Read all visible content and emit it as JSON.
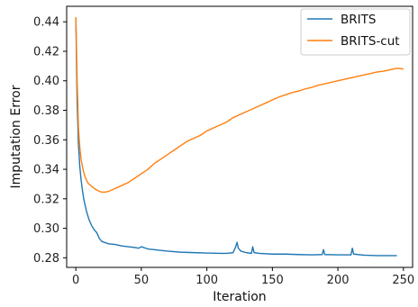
{
  "chart_data": {
    "type": "line",
    "title": "",
    "xlabel": "Iteration",
    "ylabel": "Imputation Error",
    "xlim": [
      -7,
      257
    ],
    "ylim": [
      0.2735,
      0.4505
    ],
    "xticks": [
      0,
      50,
      100,
      150,
      200,
      250
    ],
    "yticks": [
      0.28,
      0.3,
      0.32,
      0.34,
      0.36,
      0.38,
      0.4,
      0.42,
      0.44
    ],
    "ytick_labels": [
      "0.28",
      "0.30",
      "0.32",
      "0.34",
      "0.36",
      "0.38",
      "0.40",
      "0.42",
      "0.44"
    ],
    "grid": false,
    "legend_position": "top-right",
    "series": [
      {
        "name": "BRITS",
        "color": "#1f77b4",
        "x": [
          0,
          1,
          2,
          3,
          4,
          5,
          6,
          7,
          8,
          10,
          12,
          14,
          16,
          18,
          20,
          25,
          30,
          35,
          40,
          45,
          48,
          50,
          55,
          60,
          65,
          70,
          80,
          90,
          100,
          110,
          115,
          120,
          122,
          123,
          124,
          126,
          130,
          134,
          135,
          136,
          140,
          150,
          160,
          170,
          180,
          188,
          189,
          190,
          200,
          210,
          211,
          212,
          220,
          230,
          240,
          245
        ],
        "y": [
          0.443,
          0.385,
          0.357,
          0.342,
          0.333,
          0.326,
          0.32,
          0.316,
          0.312,
          0.306,
          0.302,
          0.299,
          0.297,
          0.293,
          0.291,
          0.2895,
          0.289,
          0.288,
          0.2875,
          0.287,
          0.2865,
          0.2875,
          0.286,
          0.2855,
          0.285,
          0.2845,
          0.2838,
          0.2835,
          0.2832,
          0.283,
          0.283,
          0.2835,
          0.2875,
          0.2905,
          0.2865,
          0.2845,
          0.2835,
          0.283,
          0.2875,
          0.2835,
          0.283,
          0.2825,
          0.2825,
          0.2822,
          0.282,
          0.2822,
          0.2855,
          0.2822,
          0.282,
          0.282,
          0.2865,
          0.2825,
          0.2818,
          0.2815,
          0.2815,
          0.2815
        ]
      },
      {
        "name": "BRITS-cut",
        "color": "#ff7f0e",
        "x": [
          0,
          1,
          2,
          3,
          4,
          5,
          6,
          7,
          8,
          9,
          10,
          12,
          14,
          16,
          18,
          20,
          22,
          25,
          30,
          35,
          40,
          45,
          50,
          55,
          60,
          65,
          70,
          75,
          80,
          85,
          90,
          95,
          100,
          105,
          110,
          115,
          120,
          125,
          130,
          135,
          140,
          145,
          150,
          155,
          160,
          165,
          170,
          175,
          180,
          185,
          190,
          195,
          200,
          205,
          210,
          215,
          220,
          225,
          230,
          235,
          240,
          245,
          250
        ],
        "y": [
          0.443,
          0.4,
          0.368,
          0.355,
          0.347,
          0.342,
          0.338,
          0.335,
          0.333,
          0.331,
          0.33,
          0.3285,
          0.327,
          0.326,
          0.325,
          0.3245,
          0.3245,
          0.325,
          0.327,
          0.329,
          0.331,
          0.334,
          0.337,
          0.34,
          0.344,
          0.347,
          0.35,
          0.353,
          0.356,
          0.359,
          0.361,
          0.363,
          0.366,
          0.368,
          0.37,
          0.372,
          0.375,
          0.377,
          0.379,
          0.381,
          0.383,
          0.385,
          0.387,
          0.389,
          0.3905,
          0.392,
          0.393,
          0.3945,
          0.3955,
          0.397,
          0.398,
          0.399,
          0.4,
          0.401,
          0.402,
          0.403,
          0.404,
          0.405,
          0.406,
          0.4065,
          0.4075,
          0.4085,
          0.408
        ]
      }
    ]
  }
}
